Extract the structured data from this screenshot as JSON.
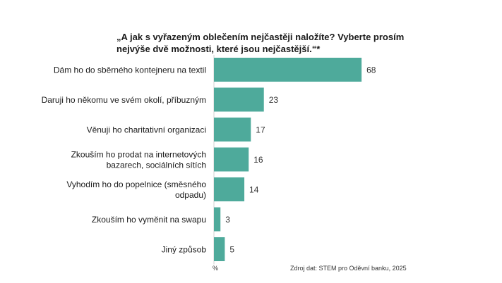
{
  "title_lines": [
    "„A jak s vyřazeným oblečením nejčastěji naložíte? Vyberte prosím",
    "nejvýše dvě možnosti, které jsou nejčastější.“*"
  ],
  "unit": "%",
  "source": "Zdroj dat: STEM pro Oděvní banku, 2025",
  "colors": {
    "bar": "#4eaa9b",
    "text": "#1a1a1a"
  },
  "chart_data": {
    "type": "bar",
    "orientation": "horizontal",
    "categories": [
      [
        "Dám ho do sběrného kontejneru na textil"
      ],
      [
        "Daruji ho někomu ve svém okolí, příbuzným"
      ],
      [
        "Věnuji ho charitativní organizaci"
      ],
      [
        "Zkouším ho prodat na internetových",
        "bazarech, sociálních sítích"
      ],
      [
        "Vyhodím ho do popelnice (směsného",
        "odpadu)"
      ],
      [
        "Zkouším ho vyměnit na swapu"
      ],
      [
        "Jiný způsob"
      ]
    ],
    "values": [
      68,
      23,
      17,
      16,
      14,
      3,
      5
    ],
    "data_labels": [
      "68",
      "23",
      "17",
      "16",
      "14",
      "3",
      "5"
    ],
    "xlim": [
      0,
      100
    ],
    "xlabel": "%",
    "grid": false,
    "legend": "none"
  }
}
